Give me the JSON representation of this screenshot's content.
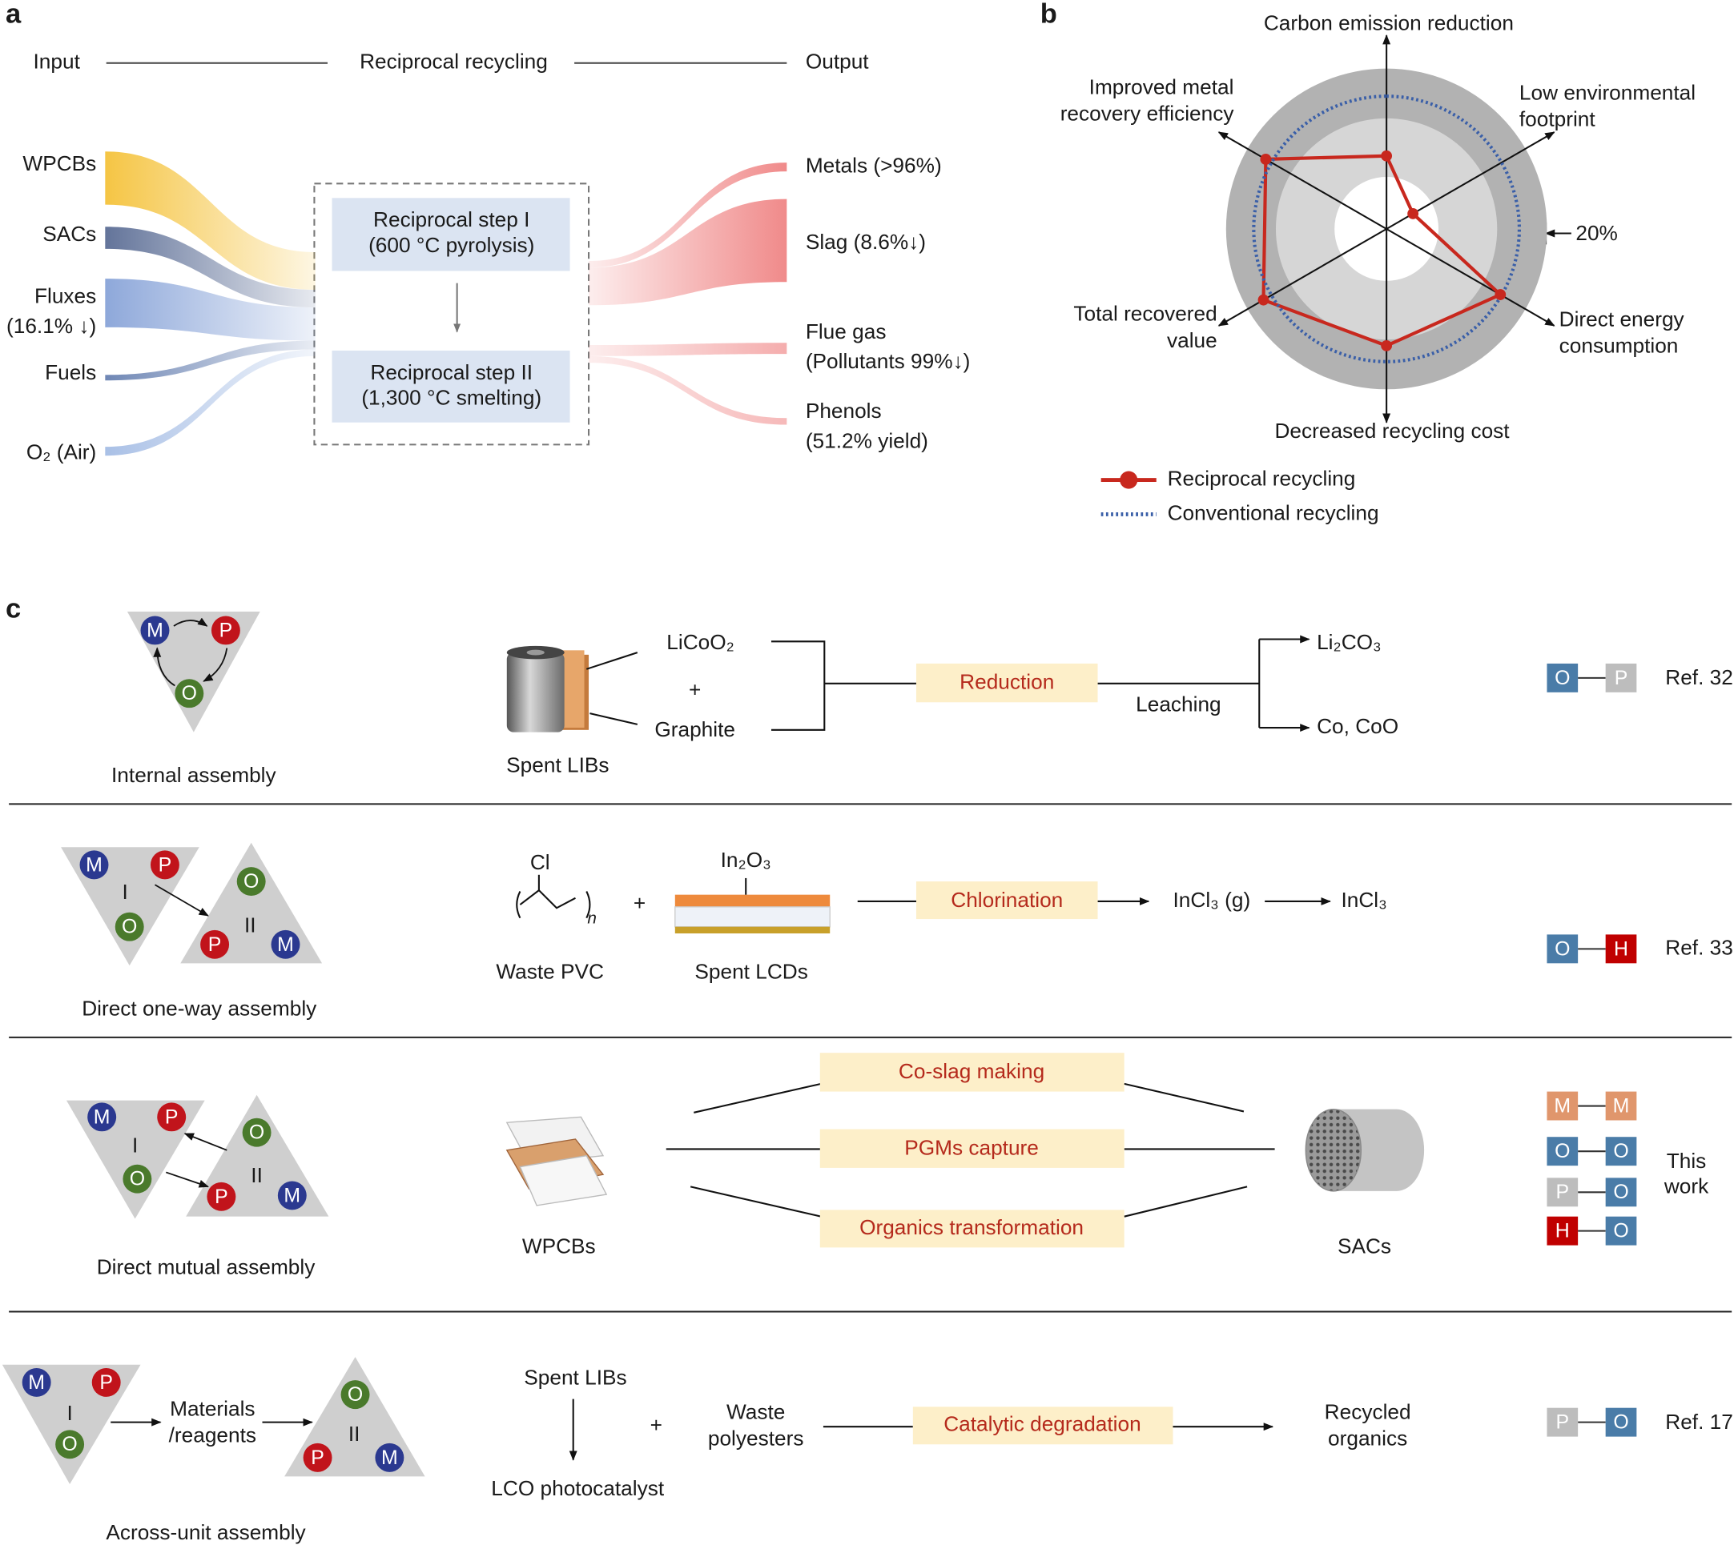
{
  "panel_labels": [
    "a",
    "b",
    "c"
  ],
  "panel_a": {
    "header": {
      "input": "Input",
      "process": "Reciprocal recycling",
      "output": "Output"
    },
    "inputs": [
      [
        "WPCBs"
      ],
      [
        "SACs"
      ],
      [
        "Fluxes",
        "(16.1% ↓)"
      ],
      [
        "Fuels"
      ],
      [
        "O₂ (Air)"
      ]
    ],
    "steps": [
      [
        "Reciprocal step I",
        "(600 °C pyrolysis)"
      ],
      [
        "Reciprocal step II",
        "(1,300 °C smelting)"
      ]
    ],
    "outputs": [
      [
        "Metals (>96%)"
      ],
      [
        "Slag (8.6%↓)"
      ],
      [
        "Flue gas",
        "(Pollutants 99%↓)"
      ],
      [
        "Phenols",
        "(51.2% yield)"
      ]
    ]
  },
  "chart_data": {
    "type": "radar",
    "categories": [
      [
        "Carbon emission reduction"
      ],
      [
        "Low environmental",
        "footprint"
      ],
      [
        "Direct energy",
        "consumption"
      ],
      [
        "Decreased recycling cost"
      ],
      [
        "Total recovered",
        "value"
      ],
      [
        "Improved metal",
        "recovery efficiency"
      ]
    ],
    "rlim": [
      0,
      120
    ],
    "annotation": "20%",
    "series": [
      {
        "name": "Reciprocal recycling",
        "color": "#c8281e",
        "values": [
          55,
          23,
          99,
          88,
          107,
          105
        ]
      },
      {
        "name": "Conventional recycling",
        "color": "#3a5fa8",
        "values": [
          100,
          100,
          100,
          100,
          100,
          100
        ]
      }
    ]
  },
  "panel_c": {
    "letter_colors": {
      "M": "#2b3990",
      "P": "#c1141b",
      "O": "#4a7a2c"
    },
    "badge_colors": {
      "M": "#e0966c",
      "O": "#4a7ca8",
      "P": "#bdbdbd",
      "H": "#c00000"
    },
    "rows": [
      {
        "assembly": "Internal assembly",
        "triangles": [
          {
            "letters": [
              "M",
              "P",
              "O"
            ]
          }
        ],
        "source": "Spent LIBs",
        "components": [
          "LiCoO₂",
          "+",
          "Graphite"
        ],
        "process": "Reduction",
        "step": "Leaching",
        "products": [
          "Li₂CO₃",
          "Co, CoO"
        ],
        "badges": [
          [
            "O",
            "P"
          ]
        ],
        "reference": "Ref. 32"
      },
      {
        "assembly": "Direct one-way assembly",
        "triangles": [
          {
            "letters": [
              "M",
              "P",
              "O"
            ],
            "numeral": "I"
          },
          {
            "letters": [
              "O",
              "P",
              "M"
            ],
            "numeral": "II"
          }
        ],
        "polymer_atom": "Cl",
        "repeat": "n",
        "plus": "+",
        "coating": "In₂O₃",
        "sources": [
          "Waste PVC",
          "Spent LCDs"
        ],
        "process": "Chlorination",
        "products": [
          "InCl₃ (g)",
          "InCl₃"
        ],
        "badges": [
          [
            "O",
            "H"
          ]
        ],
        "reference": "Ref. 33"
      },
      {
        "assembly": "Direct mutual assembly",
        "triangles": [
          {
            "letters": [
              "M",
              "P",
              "O"
            ],
            "numeral": "I"
          },
          {
            "letters": [
              "O",
              "P",
              "M"
            ],
            "numeral": "II"
          }
        ],
        "sources": [
          "WPCBs",
          "SACs"
        ],
        "processes": [
          "Co-slag making",
          "PGMs capture",
          "Organics transformation"
        ],
        "badges": [
          [
            "M",
            "M"
          ],
          [
            "O",
            "O"
          ],
          [
            "P",
            "O"
          ],
          [
            "H",
            "O"
          ]
        ],
        "reference": [
          "This",
          "work"
        ]
      },
      {
        "assembly": "Across-unit assembly",
        "triangles": [
          {
            "letters": [
              "M",
              "P",
              "O"
            ],
            "numeral": "I"
          },
          {
            "letters": [
              "O",
              "P",
              "M"
            ],
            "numeral": "II"
          }
        ],
        "reagents": [
          "Materials",
          "/reagents"
        ],
        "source": "Spent LIBs",
        "catalyst": "LCO photocatalyst",
        "plus": "+",
        "substrate": [
          "Waste",
          "polyesters"
        ],
        "process": "Catalytic degradation",
        "product": [
          "Recycled",
          "organics"
        ],
        "badges": [
          [
            "P",
            "O"
          ]
        ],
        "reference": "Ref. 17"
      }
    ]
  }
}
